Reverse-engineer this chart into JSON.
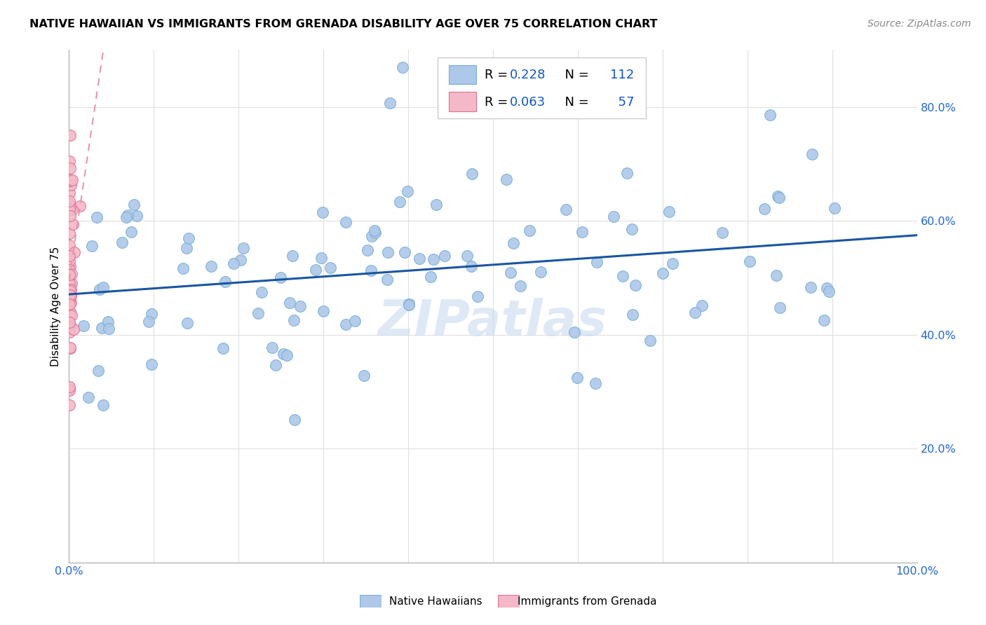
{
  "title": "NATIVE HAWAIIAN VS IMMIGRANTS FROM GRENADA DISABILITY AGE OVER 75 CORRELATION CHART",
  "source": "Source: ZipAtlas.com",
  "ylabel": "Disability Age Over 75",
  "xlim": [
    0.0,
    1.0
  ],
  "ylim": [
    0.0,
    0.9
  ],
  "xticks": [
    0.0,
    0.1,
    0.2,
    0.3,
    0.4,
    0.5,
    0.6,
    0.7,
    0.8,
    0.9,
    1.0
  ],
  "xtick_labels": [
    "0.0%",
    "",
    "",
    "",
    "",
    "",
    "",
    "",
    "",
    "",
    "100.0%"
  ],
  "yticks": [
    0.0,
    0.2,
    0.4,
    0.6,
    0.8
  ],
  "ytick_labels": [
    "",
    "20.0%",
    "40.0%",
    "60.0%",
    "80.0%"
  ],
  "blue_R": 0.228,
  "blue_N": 112,
  "pink_R": 0.063,
  "pink_N": 57,
  "blue_color": "#adc8e8",
  "blue_edge": "#7aafd4",
  "blue_line_color": "#1a55a0",
  "pink_color": "#f5b8c8",
  "pink_edge": "#e07090",
  "pink_line_color": "#e896a8",
  "legend_R_color": "#1155cc",
  "watermark": "ZIPatlas",
  "grid_color": "#e0e0e0",
  "title_color": "#000000",
  "source_color": "#888888",
  "tick_color": "#2266cc"
}
